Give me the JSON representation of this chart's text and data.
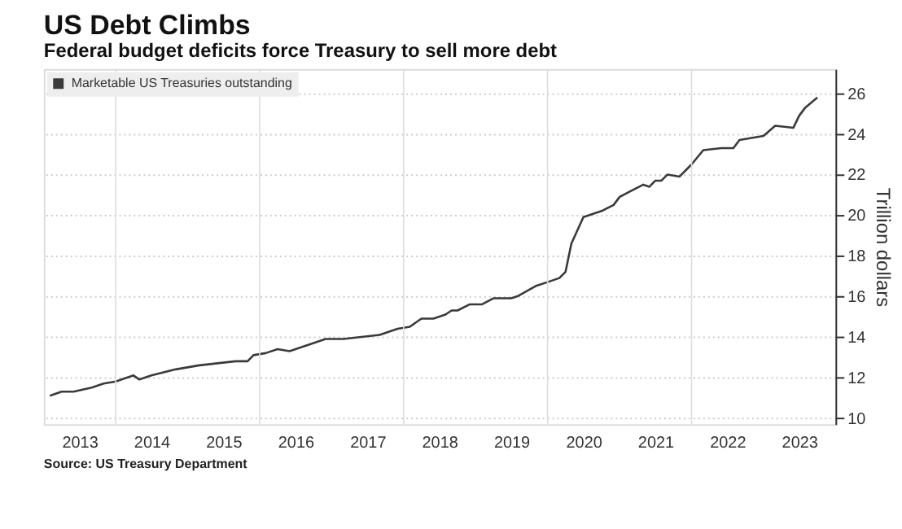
{
  "chart_data": {
    "type": "line",
    "title": "US Debt Climbs",
    "subtitle": "Federal budget deficits force Treasury to sell more debt",
    "ylabel": "Trillion dollars",
    "annotations": [
      "Source: US Treasury Department"
    ],
    "x": [
      "2013-02",
      "2013-04",
      "2013-06",
      "2013-09",
      "2013-11",
      "2014-01",
      "2014-04",
      "2014-05",
      "2014-07",
      "2014-11",
      "2015-03",
      "2015-06",
      "2015-09",
      "2015-11",
      "2015-12",
      "2016-02",
      "2016-04",
      "2016-06",
      "2016-08",
      "2016-12",
      "2017-03",
      "2017-06",
      "2017-09",
      "2017-12",
      "2018-02",
      "2018-04",
      "2018-06",
      "2018-08",
      "2018-09",
      "2018-10",
      "2018-12",
      "2019-02",
      "2019-04",
      "2019-07",
      "2019-08",
      "2019-11",
      "2020-01",
      "2020-03",
      "2020-04",
      "2020-05",
      "2020-07",
      "2020-10",
      "2020-12",
      "2021-01",
      "2021-03",
      "2021-05",
      "2021-06",
      "2021-07",
      "2021-08",
      "2021-09",
      "2021-11",
      "2022-01",
      "2022-03",
      "2022-06",
      "2022-08",
      "2022-09",
      "2022-11",
      "2023-01",
      "2023-03",
      "2023-06",
      "2023-07",
      "2023-08",
      "2023-10"
    ],
    "series": [
      {
        "name": "Marketable US Treasuries outstanding",
        "color": "#3a3a3a",
        "values": [
          11.1,
          11.3,
          11.3,
          11.5,
          11.7,
          11.8,
          12.1,
          11.9,
          12.1,
          12.4,
          12.6,
          12.7,
          12.8,
          12.8,
          13.1,
          13.2,
          13.4,
          13.3,
          13.5,
          13.9,
          13.9,
          14.0,
          14.1,
          14.4,
          14.5,
          14.9,
          14.9,
          15.1,
          15.3,
          15.3,
          15.6,
          15.6,
          15.9,
          15.9,
          16.0,
          16.5,
          16.7,
          16.9,
          17.2,
          18.6,
          19.9,
          20.2,
          20.5,
          20.9,
          21.2,
          21.5,
          21.4,
          21.7,
          21.7,
          22.0,
          21.9,
          22.5,
          23.2,
          23.3,
          23.3,
          23.7,
          23.8,
          23.9,
          24.4,
          24.3,
          24.9,
          25.3,
          25.8
        ]
      }
    ],
    "xlim": [
      "2013-01",
      "2024-01"
    ],
    "xticks": [
      {
        "value": "2013-07",
        "label": "2013"
      },
      {
        "value": "2014-01",
        "label": null
      },
      {
        "value": "2014-07",
        "label": "2014"
      },
      {
        "value": "2015-07",
        "label": "2015"
      },
      {
        "value": "2016-01",
        "label": null
      },
      {
        "value": "2016-07",
        "label": "2016"
      },
      {
        "value": "2017-07",
        "label": "2017"
      },
      {
        "value": "2018-01",
        "label": null
      },
      {
        "value": "2018-07",
        "label": "2018"
      },
      {
        "value": "2019-07",
        "label": "2019"
      },
      {
        "value": "2020-01",
        "label": null
      },
      {
        "value": "2020-07",
        "label": "2020"
      },
      {
        "value": "2021-07",
        "label": "2021"
      },
      {
        "value": "2022-01",
        "label": null
      },
      {
        "value": "2022-07",
        "label": "2022"
      },
      {
        "value": "2023-07",
        "label": "2023"
      }
    ],
    "ylim": [
      9.7,
      27.2
    ],
    "yticks": [
      10,
      12,
      14,
      16,
      18,
      20,
      22,
      24,
      26
    ],
    "grid": true,
    "legend": "top left",
    "marker": "none",
    "line_style": "solid"
  }
}
